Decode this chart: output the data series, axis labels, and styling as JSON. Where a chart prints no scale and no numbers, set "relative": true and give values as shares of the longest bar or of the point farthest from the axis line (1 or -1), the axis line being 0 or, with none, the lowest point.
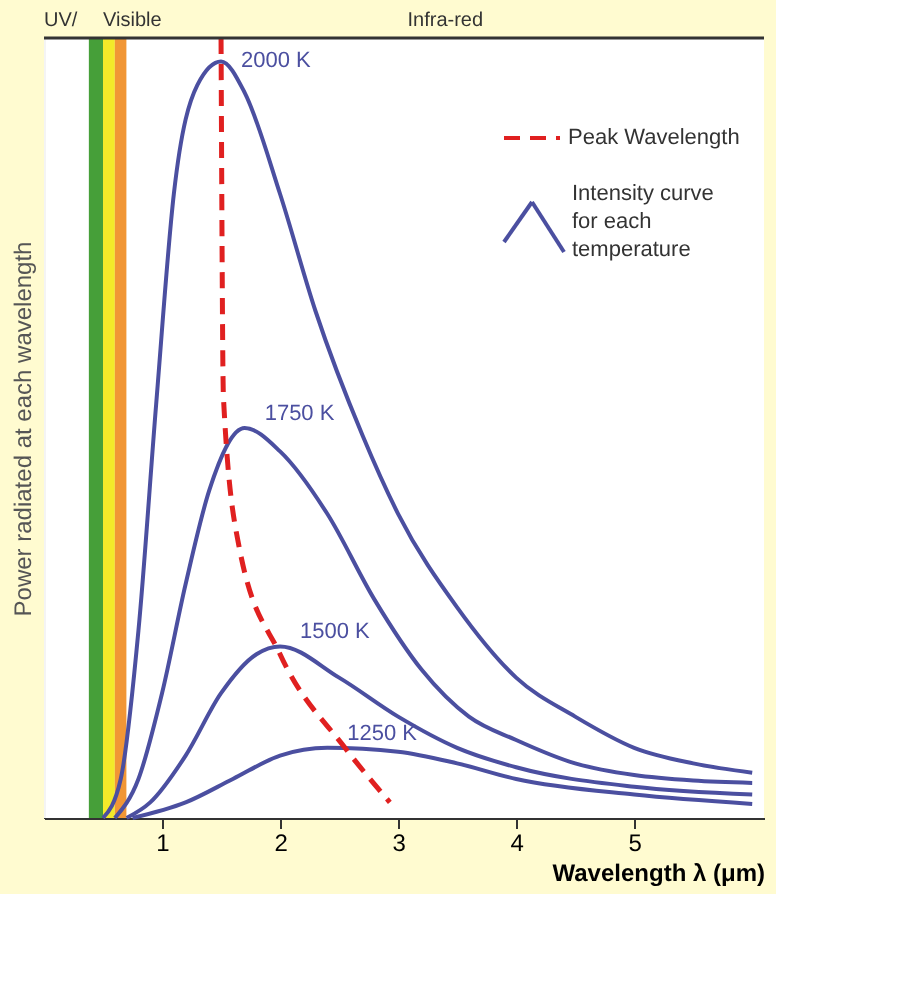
{
  "chart_data": {
    "type": "line",
    "relative": true,
    "xlabel": "Wavelength λ (μm)",
    "ylabel": "Power radiated at each wavelength",
    "xlim": [
      0,
      6.1
    ],
    "xticks": [
      {
        "value": 1,
        "label": "1"
      },
      {
        "value": 2,
        "label": "2"
      },
      {
        "value": 3,
        "label": "3"
      },
      {
        "value": 4,
        "label": "4"
      },
      {
        "value": 5,
        "label": "5"
      }
    ],
    "legend": "top right",
    "series": [
      {
        "name": "2000 K",
        "color": "#4b4fa0",
        "line_style": "solid",
        "x": [
          0.5,
          0.65,
          0.8,
          0.95,
          1.1,
          1.3,
          1.5,
          1.7,
          2.0,
          2.3,
          2.7,
          3.0,
          3.5,
          4.0,
          4.5,
          5.0,
          5.5,
          6.0
        ],
        "values": [
          0,
          0.05,
          0.24,
          0.53,
          0.8,
          0.94,
          0.97,
          0.93,
          0.8,
          0.65,
          0.49,
          0.39,
          0.27,
          0.18,
          0.13,
          0.09,
          0.07,
          0.058
        ]
      },
      {
        "name": "1750 K",
        "color": "#4b4fa0",
        "line_style": "solid",
        "x": [
          0.6,
          0.8,
          1.0,
          1.2,
          1.4,
          1.7,
          2.0,
          2.4,
          2.8,
          3.2,
          3.6,
          4.0,
          4.5,
          5.0,
          5.5,
          6.0
        ],
        "values": [
          0,
          0.05,
          0.16,
          0.3,
          0.42,
          0.5,
          0.47,
          0.39,
          0.28,
          0.19,
          0.13,
          0.1,
          0.07,
          0.055,
          0.048,
          0.045
        ]
      },
      {
        "name": "1500 K",
        "color": "#4b4fa0",
        "line_style": "solid",
        "x": [
          0.7,
          0.9,
          1.2,
          1.5,
          1.8,
          2.0,
          2.5,
          3.0,
          3.5,
          4.0,
          5.0,
          6.0
        ],
        "values": [
          0,
          0.02,
          0.08,
          0.16,
          0.21,
          0.22,
          0.18,
          0.13,
          0.09,
          0.065,
          0.04,
          0.03
        ]
      },
      {
        "name": "1250 K",
        "color": "#4b4fa0",
        "line_style": "solid",
        "x": [
          0.75,
          1.2,
          1.6,
          2.0,
          2.4,
          3.0,
          3.5,
          4.0,
          5.0,
          6.0
        ],
        "values": [
          0,
          0.02,
          0.05,
          0.08,
          0.09,
          0.085,
          0.07,
          0.05,
          0.03,
          0.018
        ]
      },
      {
        "name": "Peak Wavelength",
        "color": "#e02020",
        "line_style": "dashed",
        "x": [
          1.5,
          1.52,
          1.65,
          2.0,
          2.55,
          2.93
        ],
        "values": [
          1.0,
          0.54,
          0.35,
          0.21,
          0.09,
          0.02
        ]
      }
    ],
    "bands": [
      {
        "axis": "x",
        "from": 0,
        "to": 0.38,
        "color": "#ffffff",
        "label": "UV/"
      },
      {
        "axis": "x",
        "from": 0.38,
        "to": 0.5,
        "color": "#3c9a2e"
      },
      {
        "axis": "x",
        "from": 0.5,
        "to": 0.6,
        "color": "#f2e81e",
        "label": "Visible"
      },
      {
        "axis": "x",
        "from": 0.6,
        "to": 0.7,
        "color": "#f0902a"
      },
      {
        "axis": "x",
        "from": 0.7,
        "to": 6.1,
        "color": "#ffffff",
        "label": "Infra-red"
      }
    ],
    "ref_lines": [
      {
        "axis": "y",
        "value": 1.0,
        "color": "#333333"
      }
    ],
    "annotations": [
      "Intensity curve for each temperature"
    ]
  }
}
